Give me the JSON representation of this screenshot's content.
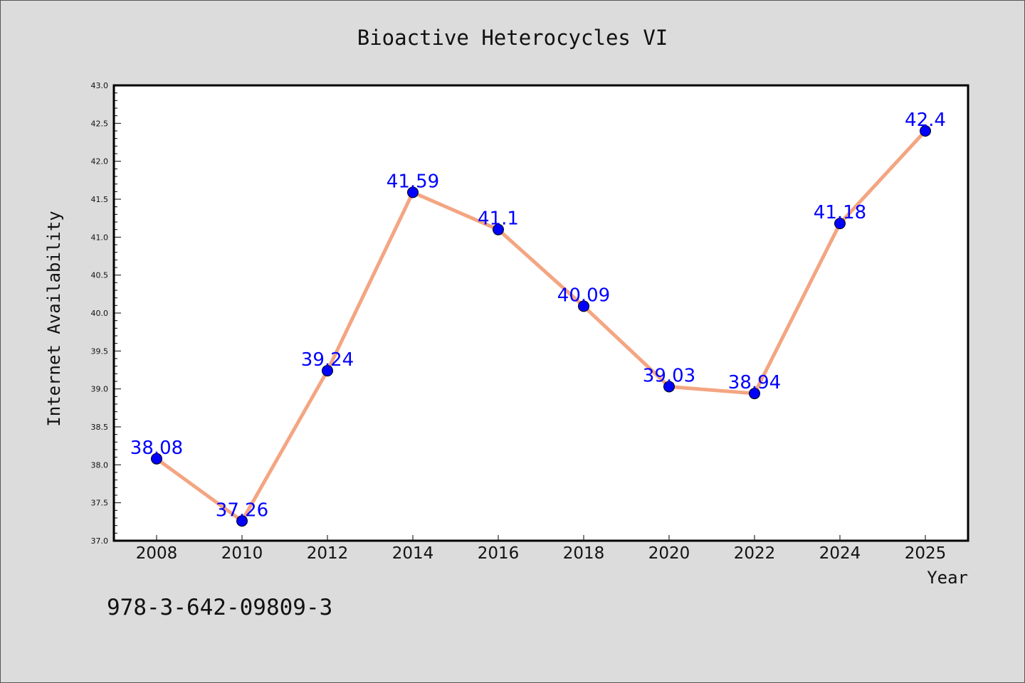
{
  "chart_data": {
    "type": "line",
    "title": "Bioactive Heterocycles VI",
    "xlabel": "Year",
    "ylabel": "Internet Availability",
    "categories": [
      "2008",
      "2010",
      "2012",
      "2014",
      "2016",
      "2018",
      "2020",
      "2022",
      "2024",
      "2025"
    ],
    "series": [
      {
        "values": [
          38.08,
          37.26,
          39.24,
          41.59,
          41.1,
          40.09,
          39.03,
          38.94,
          41.18,
          42.4
        ],
        "data_labels": [
          "38.08",
          "37.26",
          "39.24",
          "41.59",
          "41.1",
          "40.09",
          "39.03",
          "38.94",
          "41.18",
          "42.4"
        ]
      }
    ],
    "ylim": [
      37.0,
      43.0
    ],
    "yticks": [
      "37.0",
      "37.5",
      "38.0",
      "38.5",
      "39.0",
      "39.5",
      "40.0",
      "40.5",
      "41.0",
      "41.5",
      "42.0",
      "42.5",
      "43.0"
    ],
    "grid": false,
    "line_color": "#f4a582",
    "marker_color": "#0000ff",
    "label_color": "#0000ff"
  },
  "footnote": "978-3-642-09809-3"
}
